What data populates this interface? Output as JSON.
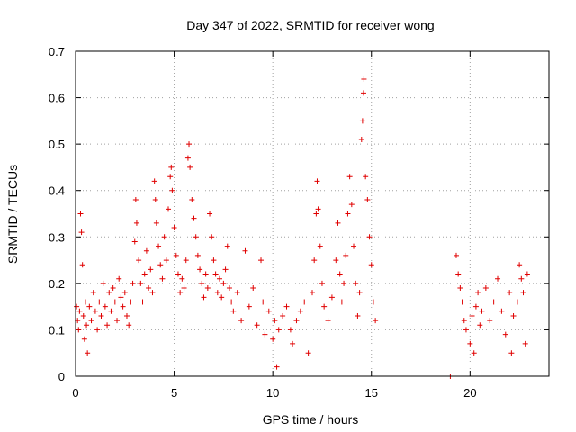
{
  "chart_data": {
    "type": "scatter",
    "title": "Day 347 of 2022, SRMTID for receiver wong",
    "xlabel": "GPS time / hours",
    "ylabel": "SRMTID / TECUs",
    "xlim": [
      0,
      24
    ],
    "ylim": [
      0,
      0.7
    ],
    "xticks": [
      0,
      5,
      10,
      15,
      20
    ],
    "yticks": [
      0,
      0.1,
      0.2,
      0.3,
      0.4,
      0.5,
      0.6,
      0.7
    ],
    "xtick_labels": [
      "0",
      "5",
      "10",
      "15",
      "20"
    ],
    "ytick_labels": [
      "0",
      "0.1",
      "0.2",
      "0.3",
      "0.4",
      "0.5",
      "0.6",
      "0.7"
    ],
    "grid": true,
    "marker": "+",
    "color": "#e00000",
    "series": [
      {
        "name": "SRMTID",
        "points": [
          [
            0.05,
            0.15
          ],
          [
            0.1,
            0.12
          ],
          [
            0.15,
            0.1
          ],
          [
            0.2,
            0.14
          ],
          [
            0.25,
            0.35
          ],
          [
            0.3,
            0.31
          ],
          [
            0.35,
            0.24
          ],
          [
            0.4,
            0.13
          ],
          [
            0.45,
            0.08
          ],
          [
            0.5,
            0.16
          ],
          [
            0.55,
            0.11
          ],
          [
            0.6,
            0.05
          ],
          [
            0.7,
            0.15
          ],
          [
            0.8,
            0.12
          ],
          [
            0.9,
            0.18
          ],
          [
            1.0,
            0.14
          ],
          [
            1.1,
            0.1
          ],
          [
            1.2,
            0.16
          ],
          [
            1.3,
            0.13
          ],
          [
            1.4,
            0.2
          ],
          [
            1.5,
            0.15
          ],
          [
            1.6,
            0.11
          ],
          [
            1.7,
            0.18
          ],
          [
            1.8,
            0.14
          ],
          [
            1.9,
            0.19
          ],
          [
            2.0,
            0.16
          ],
          [
            2.1,
            0.12
          ],
          [
            2.2,
            0.21
          ],
          [
            2.3,
            0.17
          ],
          [
            2.4,
            0.15
          ],
          [
            2.5,
            0.18
          ],
          [
            2.6,
            0.13
          ],
          [
            2.7,
            0.11
          ],
          [
            2.8,
            0.16
          ],
          [
            2.9,
            0.2
          ],
          [
            3.0,
            0.29
          ],
          [
            3.05,
            0.38
          ],
          [
            3.1,
            0.33
          ],
          [
            3.2,
            0.25
          ],
          [
            3.3,
            0.2
          ],
          [
            3.4,
            0.16
          ],
          [
            3.5,
            0.22
          ],
          [
            3.6,
            0.27
          ],
          [
            3.7,
            0.19
          ],
          [
            3.8,
            0.23
          ],
          [
            3.9,
            0.18
          ],
          [
            4.0,
            0.42
          ],
          [
            4.05,
            0.38
          ],
          [
            4.1,
            0.33
          ],
          [
            4.2,
            0.28
          ],
          [
            4.3,
            0.24
          ],
          [
            4.4,
            0.21
          ],
          [
            4.5,
            0.3
          ],
          [
            4.6,
            0.25
          ],
          [
            4.7,
            0.36
          ],
          [
            4.8,
            0.43
          ],
          [
            4.85,
            0.45
          ],
          [
            4.9,
            0.4
          ],
          [
            5.0,
            0.32
          ],
          [
            5.1,
            0.26
          ],
          [
            5.2,
            0.22
          ],
          [
            5.3,
            0.18
          ],
          [
            5.4,
            0.21
          ],
          [
            5.5,
            0.19
          ],
          [
            5.6,
            0.25
          ],
          [
            5.7,
            0.47
          ],
          [
            5.75,
            0.5
          ],
          [
            5.8,
            0.45
          ],
          [
            5.9,
            0.38
          ],
          [
            6.0,
            0.34
          ],
          [
            6.1,
            0.3
          ],
          [
            6.2,
            0.26
          ],
          [
            6.3,
            0.23
          ],
          [
            6.4,
            0.2
          ],
          [
            6.5,
            0.17
          ],
          [
            6.6,
            0.22
          ],
          [
            6.7,
            0.19
          ],
          [
            6.8,
            0.35
          ],
          [
            6.9,
            0.3
          ],
          [
            7.0,
            0.25
          ],
          [
            7.1,
            0.22
          ],
          [
            7.2,
            0.18
          ],
          [
            7.3,
            0.21
          ],
          [
            7.4,
            0.17
          ],
          [
            7.5,
            0.2
          ],
          [
            7.6,
            0.23
          ],
          [
            7.7,
            0.28
          ],
          [
            7.8,
            0.19
          ],
          [
            7.9,
            0.16
          ],
          [
            8.0,
            0.14
          ],
          [
            8.2,
            0.18
          ],
          [
            8.4,
            0.12
          ],
          [
            8.6,
            0.27
          ],
          [
            8.8,
            0.15
          ],
          [
            9.0,
            0.19
          ],
          [
            9.2,
            0.11
          ],
          [
            9.4,
            0.25
          ],
          [
            9.5,
            0.16
          ],
          [
            9.6,
            0.09
          ],
          [
            9.8,
            0.14
          ],
          [
            10.0,
            0.08
          ],
          [
            10.1,
            0.12
          ],
          [
            10.2,
            0.02
          ],
          [
            10.3,
            0.1
          ],
          [
            10.5,
            0.13
          ],
          [
            10.7,
            0.15
          ],
          [
            10.9,
            0.1
          ],
          [
            11.0,
            0.07
          ],
          [
            11.2,
            0.12
          ],
          [
            11.4,
            0.14
          ],
          [
            11.6,
            0.16
          ],
          [
            11.8,
            0.05
          ],
          [
            12.0,
            0.18
          ],
          [
            12.1,
            0.25
          ],
          [
            12.2,
            0.35
          ],
          [
            12.25,
            0.42
          ],
          [
            12.3,
            0.36
          ],
          [
            12.4,
            0.28
          ],
          [
            12.5,
            0.2
          ],
          [
            12.6,
            0.15
          ],
          [
            12.8,
            0.12
          ],
          [
            13.0,
            0.17
          ],
          [
            13.2,
            0.25
          ],
          [
            13.3,
            0.33
          ],
          [
            13.4,
            0.22
          ],
          [
            13.5,
            0.16
          ],
          [
            13.6,
            0.2
          ],
          [
            13.7,
            0.26
          ],
          [
            13.8,
            0.35
          ],
          [
            13.9,
            0.43
          ],
          [
            14.0,
            0.37
          ],
          [
            14.1,
            0.28
          ],
          [
            14.2,
            0.2
          ],
          [
            14.3,
            0.13
          ],
          [
            14.4,
            0.18
          ],
          [
            14.5,
            0.51
          ],
          [
            14.55,
            0.55
          ],
          [
            14.6,
            0.61
          ],
          [
            14.62,
            0.64
          ],
          [
            14.7,
            0.43
          ],
          [
            14.8,
            0.38
          ],
          [
            14.9,
            0.3
          ],
          [
            15.0,
            0.24
          ],
          [
            15.1,
            0.16
          ],
          [
            15.2,
            0.12
          ],
          [
            19.0,
            0.0
          ],
          [
            19.3,
            0.26
          ],
          [
            19.4,
            0.22
          ],
          [
            19.5,
            0.19
          ],
          [
            19.6,
            0.16
          ],
          [
            19.7,
            0.12
          ],
          [
            19.8,
            0.1
          ],
          [
            20.0,
            0.07
          ],
          [
            20.1,
            0.13
          ],
          [
            20.2,
            0.05
          ],
          [
            20.3,
            0.15
          ],
          [
            20.4,
            0.18
          ],
          [
            20.5,
            0.11
          ],
          [
            20.6,
            0.14
          ],
          [
            20.8,
            0.19
          ],
          [
            21.0,
            0.12
          ],
          [
            21.2,
            0.16
          ],
          [
            21.4,
            0.21
          ],
          [
            21.6,
            0.14
          ],
          [
            21.8,
            0.09
          ],
          [
            22.0,
            0.18
          ],
          [
            22.1,
            0.05
          ],
          [
            22.2,
            0.13
          ],
          [
            22.4,
            0.16
          ],
          [
            22.5,
            0.24
          ],
          [
            22.6,
            0.21
          ],
          [
            22.7,
            0.18
          ],
          [
            22.8,
            0.07
          ],
          [
            22.9,
            0.22
          ]
        ]
      }
    ]
  }
}
